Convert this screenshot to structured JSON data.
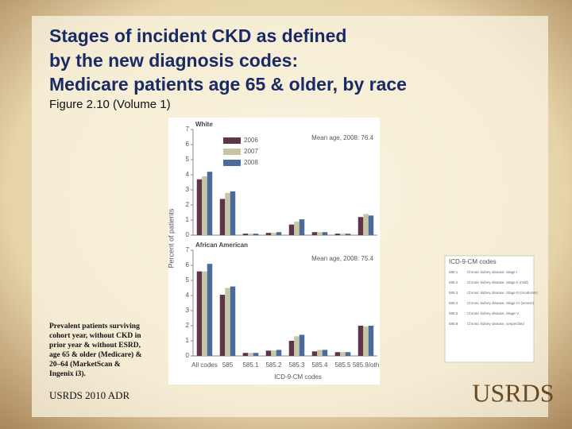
{
  "slide": {
    "title_lines": [
      "Stages of incident CKD as defined",
      "by the new diagnosis codes:",
      "Medicare patients age 65 & older, by race"
    ],
    "subtitle": "Figure 2.10 (Volume 1)",
    "note": [
      "Prevalent patients surviving",
      "cohort year, without CKD in",
      "prior year & without ESRD,",
      "age 65 & older (Medicare) &",
      "20–64 (MarketScan &",
      "Ingenix i3)."
    ],
    "source": "USRDS 2010 ADR",
    "logo": "USRDS",
    "inset": {
      "title": "ICD-9-CM codes",
      "rows": [
        {
          "code": "585.1",
          "text": "Chronic kidney disease, Stage I"
        },
        {
          "code": "585.2",
          "text": "Chronic kidney disease, Stage II (mild)"
        },
        {
          "code": "585.3",
          "text": "Chronic kidney disease, Stage III (moderate)"
        },
        {
          "code": "585.4",
          "text": "Chronic kidney disease, Stage IV (severe)"
        },
        {
          "code": "585.5",
          "text": "Chronic kidney disease, Stage V"
        },
        {
          "code": "585.9",
          "text": "Chronic kidney disease, unspecified"
        }
      ]
    }
  },
  "chart_data": [
    {
      "type": "bar",
      "title": "White",
      "annotation": "Mean age, 2008: 76.4",
      "y_label": "Percent of patients",
      "categories": [
        null,
        null,
        null,
        null,
        null,
        null,
        null,
        null
      ],
      "series": [
        {
          "name": "2006",
          "color": "#5e3448",
          "values": [
            3.7,
            2.4,
            0.1,
            0.15,
            0.7,
            0.2,
            0.1,
            1.2
          ]
        },
        {
          "name": "2007",
          "color": "#c6c6a6",
          "values": [
            3.9,
            2.8,
            0.1,
            0.15,
            0.9,
            0.2,
            0.1,
            1.4
          ]
        },
        {
          "name": "2008",
          "color": "#4b6b9b",
          "values": [
            4.2,
            2.9,
            0.1,
            0.2,
            1.05,
            0.2,
            0.1,
            1.3
          ]
        }
      ],
      "ylim": [
        0,
        7
      ],
      "yticks": [
        0,
        1,
        2,
        3,
        4,
        5,
        6,
        7
      ],
      "legend": "upper-left"
    },
    {
      "type": "bar",
      "title": "African American",
      "annotation": "Mean age, 2008: 75.4",
      "x_label": "ICD-9-CM codes",
      "categories": [
        "All codes",
        "585",
        "585.1",
        "585.2",
        "585.3",
        "585.4",
        "585.5",
        "585.9/oth"
      ],
      "series": [
        {
          "color": "#5e3448",
          "values": [
            5.6,
            4.05,
            0.2,
            0.35,
            1.0,
            0.3,
            0.25,
            2.0
          ]
        },
        {
          "color": "#c6c6a6",
          "values": [
            5.6,
            4.5,
            0.2,
            0.35,
            1.3,
            0.4,
            0.25,
            1.95
          ]
        },
        {
          "color": "#4b6b9b",
          "values": [
            6.1,
            4.6,
            0.2,
            0.4,
            1.4,
            0.4,
            0.25,
            2.0
          ]
        }
      ],
      "ylim": [
        0,
        7
      ],
      "yticks": [
        0,
        1,
        2,
        3,
        4,
        5,
        6,
        7
      ]
    }
  ]
}
